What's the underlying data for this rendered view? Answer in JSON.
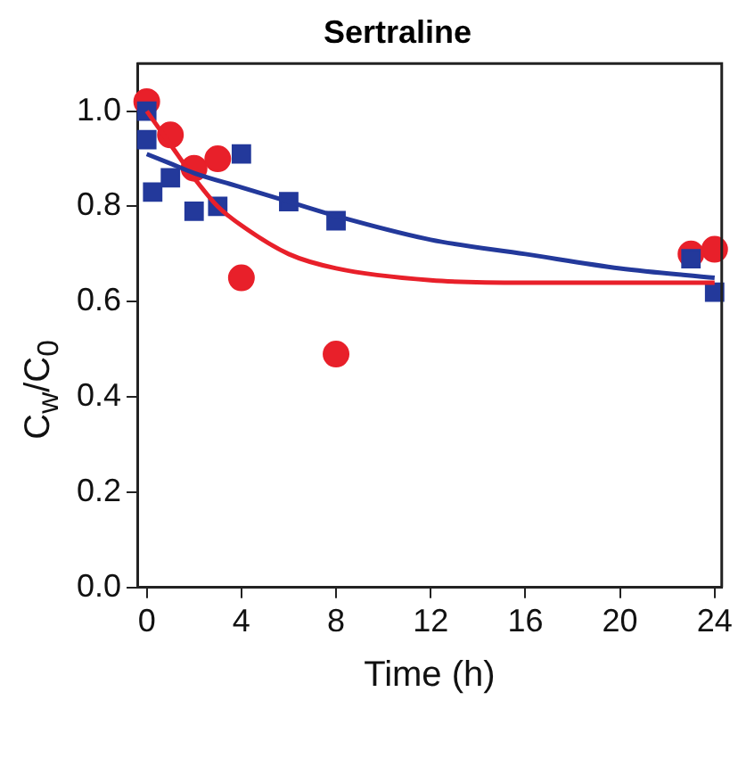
{
  "chart_data": {
    "type": "scatter",
    "title": "Sertraline",
    "xlabel": "Time (h)",
    "ylabel": "C$_{w}$/C$_{0}$",
    "xlim": [
      -0.4,
      24.3
    ],
    "xticks": [
      0,
      4,
      8,
      12,
      16,
      20,
      24
    ],
    "ylim": [
      0,
      1.1
    ],
    "yticks": [
      {
        "value": 0,
        "label": "0.0"
      },
      {
        "value": 0.2,
        "label": "0.2"
      },
      {
        "value": 0.4,
        "label": "0.4"
      },
      {
        "value": 0.6,
        "label": "0.6"
      },
      {
        "value": 0.8,
        "label": "0.8"
      },
      {
        "value": 1,
        "label": "1.0"
      }
    ],
    "grid": false,
    "legend": false,
    "series": [
      {
        "type": "line",
        "marker": "none",
        "color": "#23399b",
        "x": [
          0,
          1,
          2,
          4,
          6,
          8,
          12,
          16,
          20,
          24
        ],
        "values": [
          0.91,
          0.89,
          0.87,
          0.84,
          0.81,
          0.78,
          0.73,
          0.7,
          0.67,
          0.65
        ]
      },
      {
        "type": "line",
        "marker": "none",
        "color": "#e8202a",
        "x": [
          0,
          1,
          2,
          3,
          4,
          6,
          8,
          12,
          16,
          20,
          24
        ],
        "values": [
          1.0,
          0.93,
          0.86,
          0.8,
          0.76,
          0.7,
          0.67,
          0.645,
          0.64,
          0.64,
          0.64
        ]
      },
      {
        "marker": "square",
        "color": "#23399b",
        "x": [
          0,
          0,
          0.25,
          1,
          2,
          3,
          4,
          6,
          8,
          23,
          24
        ],
        "values": [
          1.0,
          0.94,
          0.83,
          0.86,
          0.79,
          0.8,
          0.91,
          0.81,
          0.77,
          0.69,
          0.62
        ]
      },
      {
        "marker": "circle",
        "color": "#e8202a",
        "x": [
          0,
          1,
          2,
          3,
          4,
          8,
          23,
          24
        ],
        "values": [
          1.02,
          0.95,
          0.88,
          0.9,
          0.65,
          0.49,
          0.7,
          0.71
        ]
      }
    ]
  }
}
